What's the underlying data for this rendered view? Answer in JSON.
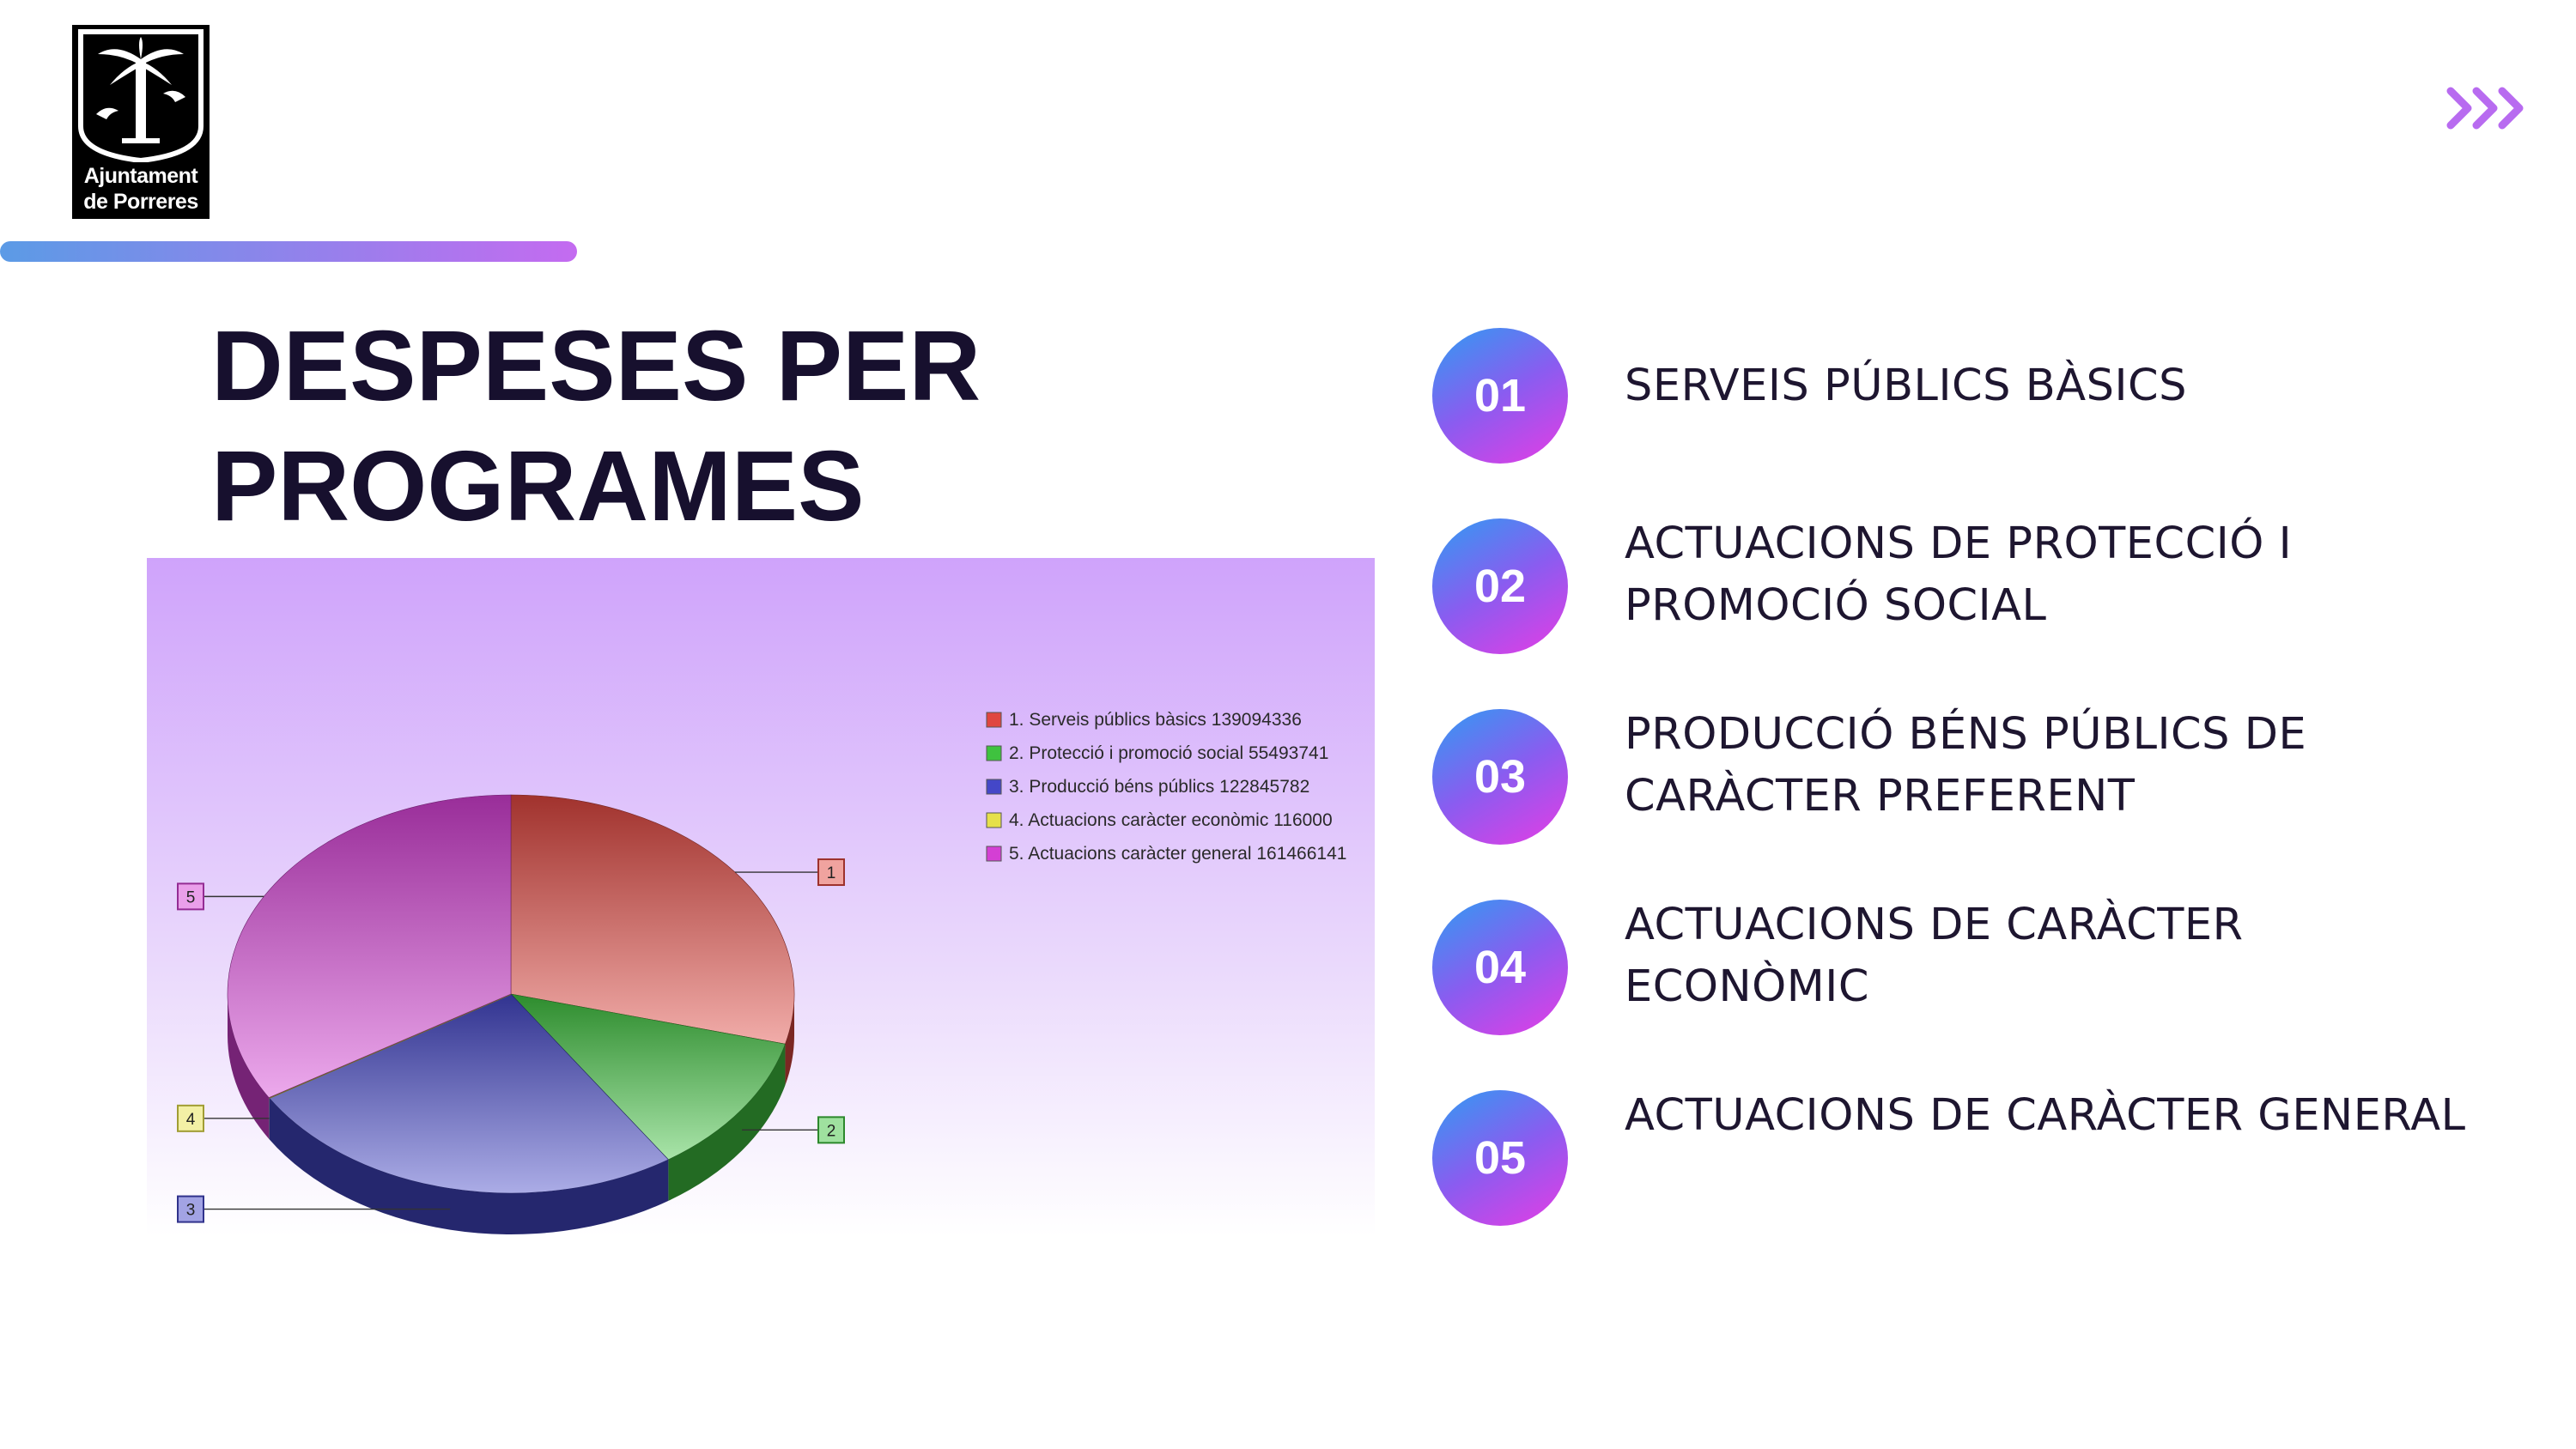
{
  "logo": {
    "line1": "Ajuntament",
    "line2": "de Porreres",
    "icon": "palm-tree-coat-of-arms-icon"
  },
  "nav": {
    "icon": "triple-chevron-right-icon",
    "color": "#b86bf0"
  },
  "title": {
    "line1": "DESPESES PER",
    "line2": "PROGRAMES"
  },
  "programs": [
    {
      "number": "01",
      "label": "SERVEIS PÚBLICS BÀSICS"
    },
    {
      "number": "02",
      "label": "ACTUACIONS DE PROTECCIÓ I PROMOCIÓ SOCIAL"
    },
    {
      "number": "03",
      "label": "PRODUCCIÓ BÉNS PÚBLICS DE CARÀCTER PREFERENT"
    },
    {
      "number": "04",
      "label": "ACTUACIONS DE CARÀCTER ECONÒMIC"
    },
    {
      "number": "05",
      "label": "ACTUACIONS DE CARÀCTER GENERAL"
    }
  ],
  "chart_data": {
    "type": "pie",
    "title": "",
    "legend_position": "top-right",
    "slices": [
      {
        "label": "1",
        "legend": "1. Serveis públics bàsics 139094336",
        "value": 139094336,
        "color": "#e0463f"
      },
      {
        "label": "2",
        "legend": "2. Protecció i promoció social 55493741",
        "value": 55493741,
        "color": "#3fc23f"
      },
      {
        "label": "3",
        "legend": "3. Producció béns públics 122845782",
        "value": 122845782,
        "color": "#4447c8"
      },
      {
        "label": "4",
        "legend": "4. Actuacions caràcter econòmic 116000",
        "value": 116000,
        "color": "#e6e04a"
      },
      {
        "label": "5",
        "legend": "5. Actuacions caràcter general 161466141",
        "value": 161466141,
        "color": "#d43fd4"
      }
    ]
  }
}
